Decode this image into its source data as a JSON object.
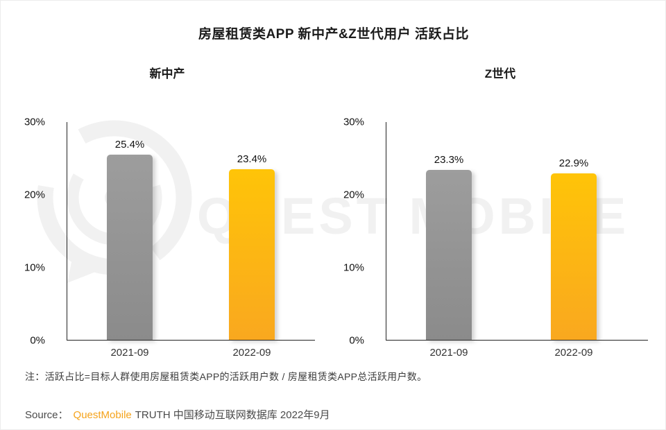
{
  "title": "房屋租赁类APP 新中产&Z世代用户 活跃占比",
  "note": "注：活跃占比=目标人群使用房屋租赁类APP的活跃用户数 / 房屋租赁类APP总活跃用户数。",
  "source": {
    "label": "Source：",
    "brand": "QuestMobile",
    "rest": "TRUTH 中国移动互联网数据库 2022年9月"
  },
  "watermark": {
    "text": "QUEST MOBILE"
  },
  "colors": {
    "bar_gray_top": "#9d9d9d",
    "bar_gray_bottom": "#8b8b8b",
    "bar_yellow_top": "#ffc408",
    "bar_yellow_bottom": "#f9a81f",
    "brand_orange": "#f5a31b",
    "watermark": "#f1f1f1"
  },
  "chart_data": [
    {
      "type": "bar",
      "title": "新中产",
      "categories": [
        "2021-09",
        "2022-09"
      ],
      "values": [
        25.4,
        23.4
      ],
      "value_labels": [
        "25.4%",
        "23.4%"
      ],
      "series": [
        {
          "name": "活跃占比",
          "values": [
            25.4,
            23.4
          ]
        }
      ],
      "yticks": [
        "30%",
        "20%",
        "10%",
        "0%"
      ],
      "ylim": [
        0,
        30
      ],
      "bar_colors": [
        "gray",
        "yellow"
      ],
      "grid": false,
      "legend": "none"
    },
    {
      "type": "bar",
      "title": "Z世代",
      "categories": [
        "2021-09",
        "2022-09"
      ],
      "values": [
        23.3,
        22.9
      ],
      "value_labels": [
        "23.3%",
        "22.9%"
      ],
      "series": [
        {
          "name": "活跃占比",
          "values": [
            23.3,
            22.9
          ]
        }
      ],
      "yticks": [
        "30%",
        "20%",
        "10%",
        "0%"
      ],
      "ylim": [
        0,
        30
      ],
      "bar_colors": [
        "gray",
        "yellow"
      ],
      "grid": false,
      "legend": "none"
    }
  ]
}
